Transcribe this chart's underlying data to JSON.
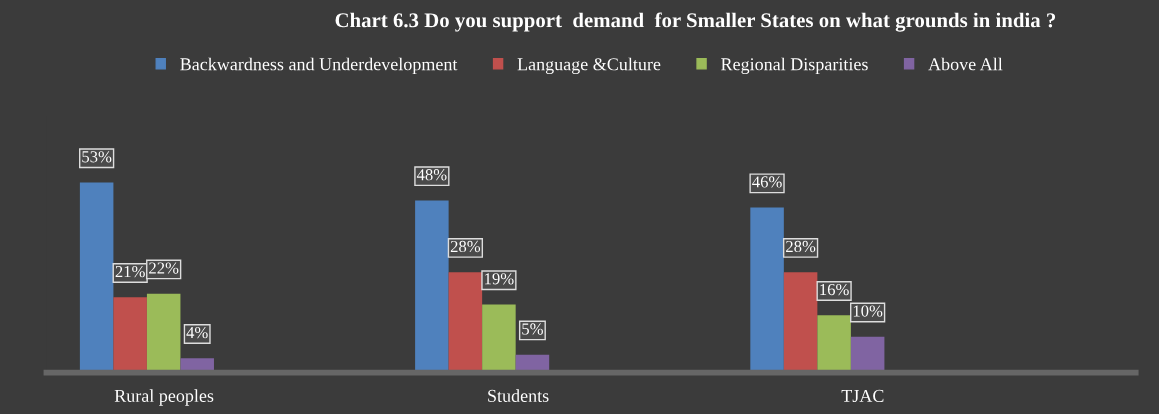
{
  "chart_data": {
    "type": "bar",
    "title": "Chart 6.3 Do you support  demand  for Smaller States on what grounds in india ?",
    "categories": [
      "Rural peoples",
      "Students",
      "TJAC"
    ],
    "series": [
      {
        "name": "Backwardness and Underdevelopment",
        "color": "#4f81bd",
        "values": [
          53,
          48,
          46
        ],
        "value_labels": [
          "53%",
          "48%",
          "46%"
        ]
      },
      {
        "name": "Language &Culture",
        "color": "#c0504d",
        "values": [
          21,
          28,
          28
        ],
        "value_labels": [
          "21%",
          "28%",
          "28%"
        ]
      },
      {
        "name": "Regional Disparities",
        "color": "#9bbb59",
        "values": [
          22,
          19,
          16
        ],
        "value_labels": [
          "22%",
          "19%",
          "16%"
        ]
      },
      {
        "name": "Above All",
        "color": "#8064a2",
        "values": [
          4,
          5,
          10
        ],
        "value_labels": [
          "4%",
          "5%",
          "10%"
        ]
      }
    ],
    "legend": "top",
    "tick_labels": "x"
  }
}
